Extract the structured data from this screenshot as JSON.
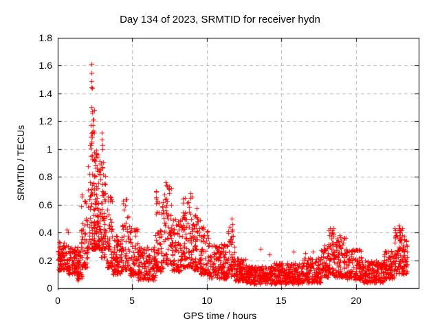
{
  "chart_data": {
    "type": "scatter",
    "title": "Day 134 of 2023, SRMTID for receiver hydn",
    "xlabel": "GPS time / hours",
    "ylabel": "SRMTID / TECUs",
    "xlim": [
      0,
      24.2
    ],
    "ylim": [
      0,
      1.8
    ],
    "xticks": [
      0,
      5,
      10,
      15,
      20
    ],
    "xtick_labels": [
      "0",
      "5",
      "10",
      "15",
      "20"
    ],
    "yticks": [
      0,
      0.2,
      0.4,
      0.6,
      0.8,
      1.0,
      1.2,
      1.4,
      1.6,
      1.8
    ],
    "ytick_labels": [
      "0",
      "0.2",
      "0.4",
      "0.6",
      "0.8",
      "1",
      "1.2",
      "1.4",
      "1.6",
      "1.8"
    ],
    "grid": "dashed",
    "legend": "none",
    "marker": "plus",
    "marker_size_px": 7,
    "marker_color": "#ff0000",
    "grid_color": "#b4b4b4",
    "border_color": "#000000",
    "background": "#ffffff",
    "seed": 42,
    "time_quantum_hours": 0.025,
    "bands": [
      [
        0.0,
        0.7,
        0.13,
        0.33,
        80,
        1.3
      ],
      [
        0.7,
        1.55,
        0.1,
        0.3,
        95,
        1.4
      ],
      [
        1.3,
        1.65,
        0.05,
        0.12,
        18,
        1.0
      ],
      [
        1.55,
        2.05,
        0.15,
        0.68,
        60,
        2.0
      ],
      [
        2.05,
        2.45,
        0.28,
        1.32,
        75,
        1.9
      ],
      [
        2.45,
        2.85,
        0.28,
        0.97,
        85,
        1.6
      ],
      [
        2.85,
        3.25,
        0.22,
        0.92,
        70,
        1.8
      ],
      [
        3.25,
        3.65,
        0.15,
        0.66,
        55,
        1.9
      ],
      [
        3.65,
        4.35,
        0.1,
        0.38,
        85,
        1.5
      ],
      [
        4.35,
        4.8,
        0.13,
        0.64,
        55,
        1.8
      ],
      [
        4.8,
        5.35,
        0.09,
        0.45,
        60,
        1.8
      ],
      [
        5.35,
        6.55,
        0.06,
        0.3,
        130,
        1.5
      ],
      [
        6.55,
        7.1,
        0.12,
        0.72,
        65,
        1.9
      ],
      [
        7.1,
        7.65,
        0.17,
        0.74,
        70,
        1.5
      ],
      [
        7.65,
        8.35,
        0.12,
        0.5,
        80,
        1.6
      ],
      [
        8.35,
        9.05,
        0.15,
        0.66,
        85,
        1.7
      ],
      [
        9.05,
        9.55,
        0.13,
        0.58,
        60,
        1.7
      ],
      [
        9.55,
        10.15,
        0.1,
        0.45,
        65,
        1.7
      ],
      [
        10.15,
        11.45,
        0.07,
        0.32,
        140,
        1.6
      ],
      [
        11.45,
        11.85,
        0.08,
        0.46,
        50,
        1.7
      ],
      [
        11.85,
        12.65,
        0.05,
        0.22,
        90,
        1.4
      ],
      [
        12.65,
        14.45,
        0.03,
        0.16,
        200,
        1.2
      ],
      [
        14.45,
        16.45,
        0.03,
        0.18,
        220,
        1.3
      ],
      [
        16.45,
        17.65,
        0.04,
        0.22,
        130,
        1.4
      ],
      [
        17.65,
        18.15,
        0.08,
        0.32,
        55,
        1.5
      ],
      [
        18.15,
        18.5,
        0.1,
        0.43,
        42,
        1.5
      ],
      [
        18.5,
        19.35,
        0.08,
        0.38,
        95,
        1.6
      ],
      [
        19.35,
        20.35,
        0.06,
        0.28,
        105,
        1.5
      ],
      [
        20.35,
        21.85,
        0.04,
        0.2,
        160,
        1.3
      ],
      [
        21.85,
        22.6,
        0.07,
        0.27,
        85,
        1.4
      ],
      [
        22.6,
        23.15,
        0.1,
        0.44,
        70,
        1.5
      ],
      [
        23.15,
        23.45,
        0.1,
        0.38,
        40,
        1.4
      ]
    ],
    "peaks": [
      [
        0.62,
        0.42
      ],
      [
        0.67,
        0.4
      ],
      [
        2.26,
        1.61
      ],
      [
        2.26,
        1.55
      ],
      [
        2.27,
        1.49
      ],
      [
        2.28,
        1.445
      ],
      [
        2.29,
        1.44
      ],
      [
        2.26,
        1.3
      ],
      [
        2.3,
        1.26
      ],
      [
        2.33,
        1.21
      ],
      [
        2.36,
        1.17
      ],
      [
        2.4,
        1.13
      ],
      [
        2.95,
        1.12
      ],
      [
        2.96,
        1.07
      ],
      [
        2.98,
        1.03
      ],
      [
        3.0,
        1.0
      ],
      [
        2.6,
        0.99
      ],
      [
        2.66,
        0.96
      ],
      [
        4.55,
        0.64
      ],
      [
        7.25,
        0.76
      ],
      [
        7.3,
        0.74
      ],
      [
        8.9,
        0.68
      ],
      [
        9.0,
        0.66
      ],
      [
        11.68,
        0.5
      ],
      [
        11.7,
        0.46
      ],
      [
        13.6,
        0.28
      ],
      [
        14.2,
        0.24
      ],
      [
        15.8,
        0.26
      ],
      [
        16.6,
        0.25
      ],
      [
        17.1,
        0.26
      ],
      [
        18.25,
        0.43
      ],
      [
        18.3,
        0.4
      ],
      [
        18.9,
        0.38
      ],
      [
        19.2,
        0.36
      ],
      [
        22.85,
        0.45
      ],
      [
        22.9,
        0.42
      ],
      [
        22.95,
        0.4
      ]
    ]
  }
}
